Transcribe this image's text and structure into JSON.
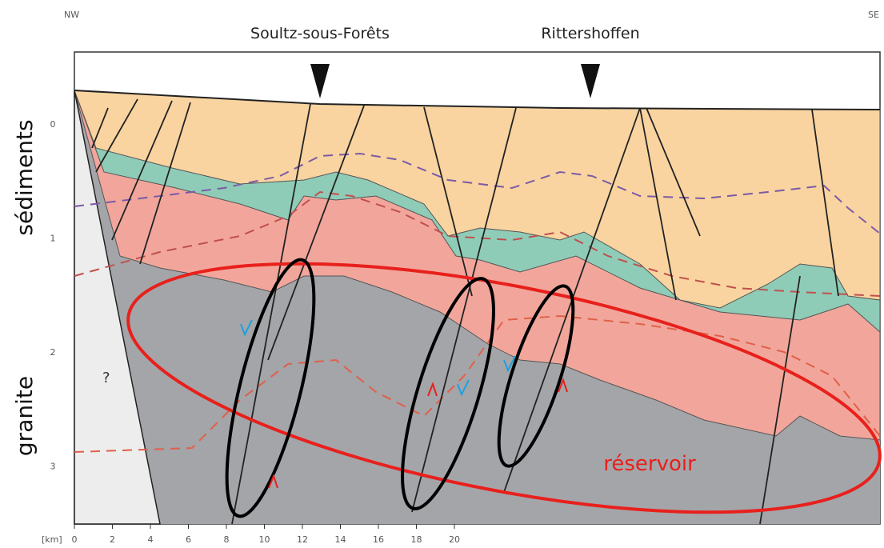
{
  "header": {
    "left": "NW",
    "right": "SE"
  },
  "wells": [
    {
      "label": "Soultz-sous-Forêts"
    },
    {
      "label": "Rittershoffen"
    }
  ],
  "side_labels": {
    "top": "sédiments",
    "bottom": "granite"
  },
  "axis": {
    "unit": "[km]",
    "x_ticks": [
      "0",
      "2",
      "4",
      "6",
      "8",
      "10",
      "12",
      "14",
      "16",
      "18",
      "20"
    ],
    "y_ticks": [
      "0",
      "1",
      "2",
      "3"
    ]
  },
  "labels": {
    "question": "?",
    "reservoir": "réservoir"
  }
}
